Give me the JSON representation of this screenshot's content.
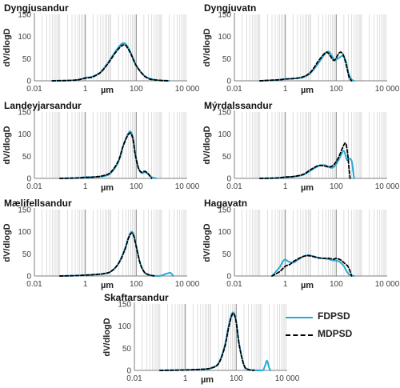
{
  "colors": {
    "fdpsd": "#27a9d6",
    "mdpsd": "#000000",
    "grid": "#c9c9c9",
    "axis": "#7f7f7f"
  },
  "legend": [
    {
      "label": "FDPSD",
      "color": "#27a9d6",
      "dash": "solid"
    },
    {
      "label": "MDPSD",
      "color": "#000000",
      "dash": "dashed"
    }
  ],
  "chart_data": [
    {
      "type": "line",
      "title": "Dyngjusandur",
      "xlabel": "µm",
      "ylabel": "dV/dlogD",
      "xscale": "log",
      "xlim": [
        0.01,
        10000
      ],
      "ylim": [
        0,
        150
      ],
      "xticks": [
        "0.01",
        "1",
        "100",
        "10 000"
      ],
      "yticks": [
        "0",
        "50",
        "100",
        "150"
      ],
      "grid": "vertical-minor",
      "series": [
        {
          "name": "FDPSD",
          "x": [
            0.05,
            0.3,
            0.6,
            1,
            1.4,
            2,
            4,
            8,
            15,
            25,
            32,
            40,
            60,
            100,
            200,
            400,
            800,
            2000
          ],
          "y": [
            0,
            1,
            3,
            7,
            8,
            10,
            20,
            42,
            66,
            82,
            85,
            82,
            64,
            35,
            12,
            4,
            1,
            0
          ]
        },
        {
          "name": "MDPSD",
          "x": [
            0.05,
            0.3,
            0.6,
            1,
            1.4,
            2,
            4,
            8,
            15,
            25,
            32,
            40,
            60,
            100,
            200,
            300,
            400,
            800,
            2000
          ],
          "y": [
            0,
            1,
            3,
            6,
            7,
            9,
            19,
            40,
            63,
            78,
            81,
            79,
            62,
            34,
            12,
            5,
            3,
            1,
            0
          ]
        }
      ]
    },
    {
      "type": "line",
      "title": "Dyngjuvatn",
      "xlabel": "µm",
      "ylabel": "dV/dlogD",
      "xscale": "log",
      "xlim": [
        0.01,
        10000
      ],
      "ylim": [
        0,
        150
      ],
      "xticks": [
        "0.01",
        "1",
        "100",
        "10 000"
      ],
      "yticks": [
        "0",
        "50",
        "100",
        "150"
      ],
      "grid": "vertical-minor",
      "series": [
        {
          "name": "FDPSD",
          "x": [
            0.1,
            0.5,
            1,
            2,
            5,
            10,
            20,
            35,
            50,
            65,
            85,
            100,
            130,
            180,
            240,
            300,
            400,
            500
          ],
          "y": [
            0,
            2,
            4,
            5,
            8,
            18,
            40,
            60,
            66,
            58,
            46,
            48,
            52,
            56,
            44,
            18,
            3,
            0
          ]
        },
        {
          "name": "MDPSD",
          "x": [
            0.1,
            0.5,
            1,
            2,
            5,
            10,
            20,
            35,
            45,
            60,
            80,
            100,
            130,
            160,
            200,
            260,
            320,
            400
          ],
          "y": [
            0,
            2,
            4,
            5,
            9,
            20,
            45,
            62,
            64,
            55,
            46,
            52,
            63,
            64,
            55,
            30,
            8,
            0
          ]
        }
      ]
    },
    {
      "type": "line",
      "title": "Landeyjarsandur",
      "xlabel": "µm",
      "ylabel": "dV/dlogD",
      "xscale": "log",
      "xlim": [
        0.01,
        10000
      ],
      "ylim": [
        0,
        150
      ],
      "xticks": [
        "0.01",
        "1",
        "100",
        "10 000"
      ],
      "yticks": [
        "0",
        "50",
        "100",
        "150"
      ],
      "grid": "vertical-minor",
      "series": [
        {
          "name": "FDPSD",
          "x": [
            0.1,
            0.5,
            1,
            2,
            5,
            10,
            20,
            30,
            45,
            60,
            75,
            90,
            120,
            160,
            220,
            300,
            400,
            600
          ],
          "y": [
            0,
            1,
            3,
            3,
            5,
            12,
            38,
            72,
            98,
            106,
            90,
            58,
            25,
            12,
            14,
            9,
            3,
            0
          ]
        },
        {
          "name": "MDPSD",
          "x": [
            0.1,
            0.5,
            1,
            2,
            5,
            10,
            20,
            30,
            45,
            60,
            75,
            90,
            120,
            160,
            220,
            300,
            400
          ],
          "y": [
            0,
            1,
            2,
            3,
            6,
            14,
            40,
            72,
            96,
            102,
            87,
            56,
            24,
            14,
            16,
            10,
            0
          ]
        }
      ]
    },
    {
      "type": "line",
      "title": "Mýrdalssandur",
      "xlabel": "µm",
      "ylabel": "dV/dlogD",
      "xscale": "log",
      "xlim": [
        0.01,
        10000
      ],
      "ylim": [
        0,
        150
      ],
      "xticks": [
        "0.01",
        "1",
        "100",
        "10 000"
      ],
      "yticks": [
        "0",
        "50",
        "100",
        "150"
      ],
      "grid": "vertical-minor",
      "series": [
        {
          "name": "FDPSD",
          "x": [
            0.1,
            0.5,
            1,
            2,
            5,
            10,
            20,
            35,
            50,
            70,
            100,
            140,
            200,
            260,
            320,
            400,
            450,
            500
          ],
          "y": [
            0,
            1,
            3,
            4,
            8,
            18,
            28,
            30,
            26,
            24,
            32,
            48,
            62,
            42,
            45,
            40,
            20,
            0
          ]
        },
        {
          "name": "MDPSD",
          "x": [
            0.1,
            0.5,
            1,
            2,
            5,
            10,
            20,
            35,
            50,
            70,
            100,
            140,
            200,
            240,
            280,
            320,
            350
          ],
          "y": [
            0,
            1,
            3,
            4,
            9,
            20,
            29,
            28,
            26,
            28,
            38,
            55,
            76,
            78,
            55,
            20,
            0
          ]
        }
      ]
    },
    {
      "type": "line",
      "title": "Mælifellsandur",
      "xlabel": "µm",
      "ylabel": "dV/dlogD",
      "xscale": "log",
      "xlim": [
        0.01,
        10000
      ],
      "ylim": [
        0,
        150
      ],
      "xticks": [
        "0.01",
        "1",
        "100",
        "10 000"
      ],
      "yticks": [
        "0",
        "50",
        "100",
        "150"
      ],
      "grid": "vertical-minor",
      "series": [
        {
          "name": "FDPSD",
          "x": [
            0.1,
            0.5,
            1,
            2,
            5,
            10,
            20,
            35,
            50,
            65,
            80,
            100,
            140,
            200,
            300,
            800,
            1500,
            2200,
            2800
          ],
          "y": [
            0,
            1,
            2,
            3,
            5,
            10,
            28,
            60,
            88,
            100,
            92,
            68,
            30,
            10,
            3,
            0,
            5,
            7,
            0
          ]
        },
        {
          "name": "MDPSD",
          "x": [
            0.1,
            0.5,
            1,
            2,
            5,
            10,
            20,
            35,
            50,
            65,
            80,
            100,
            140,
            200,
            300,
            500
          ],
          "y": [
            0,
            1,
            2,
            3,
            5,
            10,
            28,
            58,
            86,
            97,
            90,
            66,
            30,
            10,
            3,
            0
          ]
        }
      ]
    },
    {
      "type": "line",
      "title": "Hagavatn",
      "xlabel": "µm",
      "ylabel": "dV/dlogD",
      "xscale": "log",
      "xlim": [
        0.01,
        10000
      ],
      "ylim": [
        0,
        150
      ],
      "xticks": [
        "0.01",
        "1",
        "100",
        "10 000"
      ],
      "yticks": [
        "0",
        "50",
        "100",
        "150"
      ],
      "grid": "vertical-minor",
      "series": [
        {
          "name": "FDPSD",
          "x": [
            0.3,
            0.6,
            0.8,
            1,
            1.3,
            2,
            3,
            5,
            8,
            12,
            20,
            30,
            50,
            80,
            100,
            150,
            200,
            300,
            500
          ],
          "y": [
            0,
            20,
            33,
            37,
            33,
            30,
            36,
            44,
            47,
            45,
            41,
            40,
            38,
            35,
            35,
            30,
            22,
            5,
            0
          ]
        },
        {
          "name": "MDPSD",
          "x": [
            0.3,
            0.6,
            1,
            1.5,
            2,
            3,
            5,
            8,
            12,
            20,
            30,
            50,
            80,
            100,
            150,
            200,
            300,
            400
          ],
          "y": [
            0,
            10,
            22,
            26,
            32,
            38,
            44,
            46,
            44,
            41,
            40,
            40,
            38,
            40,
            36,
            30,
            20,
            0
          ]
        }
      ]
    },
    {
      "type": "line",
      "title": "Skaftarsandur",
      "xlabel": "µm",
      "ylabel": "dV/dlogD",
      "xscale": "log",
      "xlim": [
        0.01,
        10000
      ],
      "ylim": [
        0,
        150
      ],
      "xticks": [
        "0.01",
        "1",
        "100",
        "10 000"
      ],
      "yticks": [
        "0",
        "50",
        "100",
        "150"
      ],
      "grid": "vertical-minor",
      "series": [
        {
          "name": "FDPSD",
          "x": [
            0.1,
            1,
            3,
            6,
            10,
            20,
            35,
            50,
            65,
            80,
            100,
            130,
            200,
            300,
            1000,
            1300,
            1600,
            1900,
            2200
          ],
          "y": [
            0,
            1,
            2,
            3,
            5,
            16,
            55,
            100,
            126,
            130,
            110,
            60,
            12,
            2,
            0,
            8,
            22,
            8,
            0
          ]
        },
        {
          "name": "MDPSD",
          "x": [
            0.1,
            1,
            3,
            6,
            10,
            20,
            35,
            50,
            65,
            80,
            100,
            130,
            200,
            300,
            500
          ],
          "y": [
            0,
            1,
            2,
            3,
            5,
            15,
            52,
            96,
            122,
            128,
            108,
            58,
            12,
            2,
            0
          ]
        }
      ]
    }
  ]
}
